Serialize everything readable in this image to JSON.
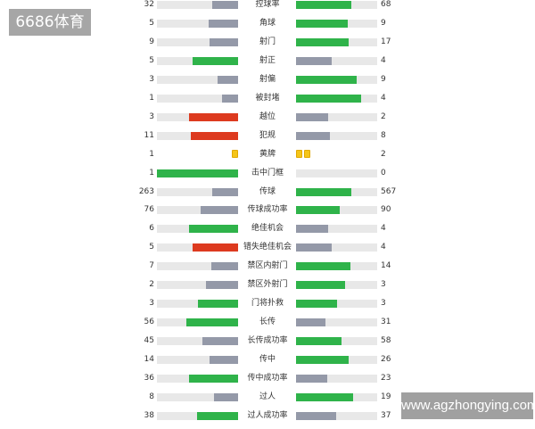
{
  "colors": {
    "green": "#2fb34a",
    "gray": "#9499a8",
    "red": "#dd3a1f",
    "yellow": "#f5c518",
    "track": "#e8e8e8"
  },
  "watermarks": {
    "top_left": "6686体育",
    "bottom_right": "www.agzhongying.com"
  },
  "stats": [
    {
      "label": "控球率",
      "home": "32",
      "away": "68",
      "home_fill": 0.32,
      "away_fill": 0.68,
      "home_color": "gray",
      "away_color": "green"
    },
    {
      "label": "角球",
      "home": "5",
      "away": "9",
      "home_fill": 0.36,
      "away_fill": 0.64,
      "home_color": "gray",
      "away_color": "green"
    },
    {
      "label": "射门",
      "home": "9",
      "away": "17",
      "home_fill": 0.35,
      "away_fill": 0.65,
      "home_color": "gray",
      "away_color": "green"
    },
    {
      "label": "射正",
      "home": "5",
      "away": "4",
      "home_fill": 0.56,
      "away_fill": 0.44,
      "home_color": "green",
      "away_color": "gray"
    },
    {
      "label": "射偏",
      "home": "3",
      "away": "9",
      "home_fill": 0.25,
      "away_fill": 0.75,
      "home_color": "gray",
      "away_color": "green"
    },
    {
      "label": "被封堵",
      "home": "1",
      "away": "4",
      "home_fill": 0.2,
      "away_fill": 0.8,
      "home_color": "gray",
      "away_color": "green"
    },
    {
      "label": "越位",
      "home": "3",
      "away": "2",
      "home_fill": 0.6,
      "away_fill": 0.4,
      "home_color": "red",
      "away_color": "gray"
    },
    {
      "label": "犯规",
      "home": "11",
      "away": "8",
      "home_fill": 0.58,
      "away_fill": 0.42,
      "home_color": "red",
      "away_color": "gray"
    },
    {
      "label": "黄牌",
      "home": "1",
      "away": "2",
      "cards": true,
      "home_cards": 1,
      "away_cards": 2
    },
    {
      "label": "击中门框",
      "home": "1",
      "away": "0",
      "home_fill": 1.0,
      "away_fill": 0,
      "home_color": "green",
      "away_color": "gray"
    },
    {
      "label": "传球",
      "home": "263",
      "away": "567",
      "home_fill": 0.32,
      "away_fill": 0.68,
      "home_color": "gray",
      "away_color": "green"
    },
    {
      "label": "传球成功率",
      "home": "76",
      "away": "90",
      "home_fill": 0.46,
      "away_fill": 0.54,
      "home_color": "gray",
      "away_color": "green"
    },
    {
      "label": "绝佳机会",
      "home": "6",
      "away": "4",
      "home_fill": 0.6,
      "away_fill": 0.4,
      "home_color": "green",
      "away_color": "gray"
    },
    {
      "label": "错失绝佳机会",
      "home": "5",
      "away": "4",
      "home_fill": 0.56,
      "away_fill": 0.44,
      "home_color": "red",
      "away_color": "gray"
    },
    {
      "label": "禁区内射门",
      "home": "7",
      "away": "14",
      "home_fill": 0.33,
      "away_fill": 0.67,
      "home_color": "gray",
      "away_color": "green"
    },
    {
      "label": "禁区外射门",
      "home": "2",
      "away": "3",
      "home_fill": 0.4,
      "away_fill": 0.6,
      "home_color": "gray",
      "away_color": "green"
    },
    {
      "label": "门将扑救",
      "home": "3",
      "away": "3",
      "home_fill": 0.5,
      "away_fill": 0.5,
      "home_color": "green",
      "away_color": "green"
    },
    {
      "label": "长传",
      "home": "56",
      "away": "31",
      "home_fill": 0.64,
      "away_fill": 0.36,
      "home_color": "green",
      "away_color": "gray"
    },
    {
      "label": "长传成功率",
      "home": "45",
      "away": "58",
      "home_fill": 0.44,
      "away_fill": 0.56,
      "home_color": "gray",
      "away_color": "green"
    },
    {
      "label": "传中",
      "home": "14",
      "away": "26",
      "home_fill": 0.35,
      "away_fill": 0.65,
      "home_color": "gray",
      "away_color": "green"
    },
    {
      "label": "传中成功率",
      "home": "36",
      "away": "23",
      "home_fill": 0.61,
      "away_fill": 0.39,
      "home_color": "green",
      "away_color": "gray"
    },
    {
      "label": "过人",
      "home": "8",
      "away": "19",
      "home_fill": 0.3,
      "away_fill": 0.7,
      "home_color": "gray",
      "away_color": "green"
    },
    {
      "label": "过人成功率",
      "home": "38",
      "away": "37",
      "home_fill": 0.51,
      "away_fill": 0.49,
      "home_color": "green",
      "away_color": "gray"
    }
  ]
}
